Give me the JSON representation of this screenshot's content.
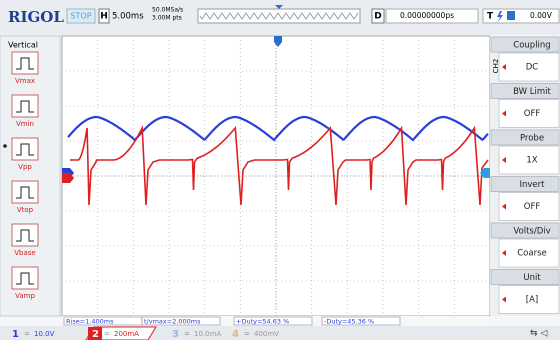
{
  "header": {
    "brand": "RIGOL",
    "status": "STOP",
    "timebase_label": "H",
    "timebase": "5.00ms",
    "sample_rate": "50.0MSa/s",
    "memory_depth": "3.00M pts",
    "delay_label": "D",
    "delay": "0.00000000ps",
    "trigger_label": "T",
    "trigger_level": "0.00V"
  },
  "left_menu": {
    "title": "Vertical",
    "items": [
      "Vmax",
      "Vmin",
      "Vpp",
      "Vtop",
      "Vbase",
      "Vamp"
    ]
  },
  "right_menu": {
    "channel": "CH2",
    "items": [
      {
        "label": "Coupling",
        "value": "DC"
      },
      {
        "label": "BW Limit",
        "value": "OFF"
      },
      {
        "label": "Probe",
        "value": "1X"
      },
      {
        "label": "Invert",
        "value": "OFF"
      },
      {
        "label": "Volts/Div",
        "value": "Coarse"
      },
      {
        "label": "Unit",
        "value": "[A]"
      }
    ]
  },
  "measurements": [
    "Rise=1.400ms",
    "t/vmax=2.000ms",
    "+Duty=54.63 %",
    "-Duty=45.36 %"
  ],
  "channels": [
    {
      "number": "1",
      "scale": "10.0V"
    },
    {
      "number": "2",
      "scale": "200mA"
    },
    {
      "number": "3",
      "scale": "10.0mA"
    },
    {
      "number": "4",
      "scale": "400mV"
    }
  ]
}
